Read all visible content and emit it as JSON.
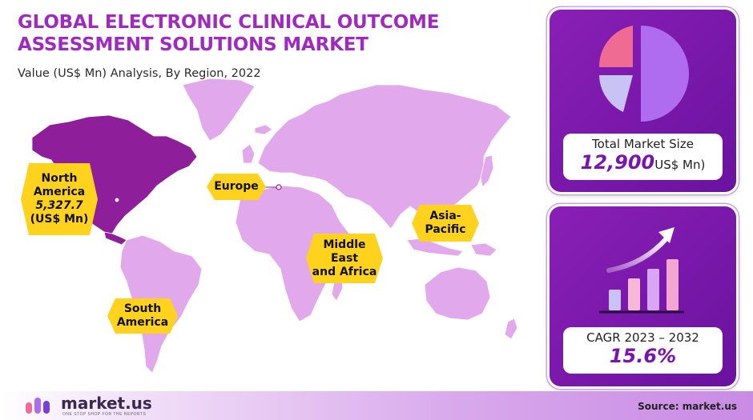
{
  "title": "GLOBAL ELECTRONIC CLINICAL OUTCOME ASSESSMENT SOLUTIONS MARKET",
  "subtitle": "Value (US$ Mn) Analysis, By Region, 2022",
  "regions": {
    "north_america": {
      "line1": "North",
      "line2": "America",
      "value": "5,327.7",
      "unit": "(US$ Mn)"
    },
    "europe": {
      "name": "Europe"
    },
    "asia_pacific": {
      "line1": "Asia-",
      "line2": "Pacific"
    },
    "mea": {
      "line1": "Middle",
      "line2": "East",
      "line3": "and Africa"
    },
    "south_america": {
      "line1": "South",
      "line2": "America"
    }
  },
  "total": {
    "label": "Total Market Size",
    "value": "12,900",
    "unit": "US$ Mn)"
  },
  "cagr": {
    "label": "CAGR 2023 – 2032",
    "value": "15.6%"
  },
  "footer": {
    "logo": "market.us",
    "tagline": "ONE STOP SHOP FOR THE REPORTS",
    "source": "Source: market.us"
  },
  "colors": {
    "accent": "#a02ac0",
    "land": "#e2a8ec",
    "highlight": "#8e1e9a",
    "label_bg": "#ffd21e",
    "panel": "#7a16ad"
  },
  "icons": [
    "pie-chart-icon",
    "growth-bar-chart-icon",
    "market-us-logo-icon"
  ],
  "chart_data": {
    "type": "map",
    "title": "GLOBAL ELECTRONIC CLINICAL OUTCOME ASSESSMENT SOLUTIONS MARKET",
    "subtitle": "Value (US$ Mn) Analysis, By Region, 2022",
    "highlighted_region": "North America",
    "categories": [
      "North America",
      "Europe",
      "Asia-Pacific",
      "Middle East and Africa",
      "South America"
    ],
    "values": [
      5327.7,
      null,
      null,
      null,
      null
    ],
    "unit": "US$ Mn",
    "total_market_size": 12900,
    "cagr_2023_2032_percent": 15.6
  }
}
